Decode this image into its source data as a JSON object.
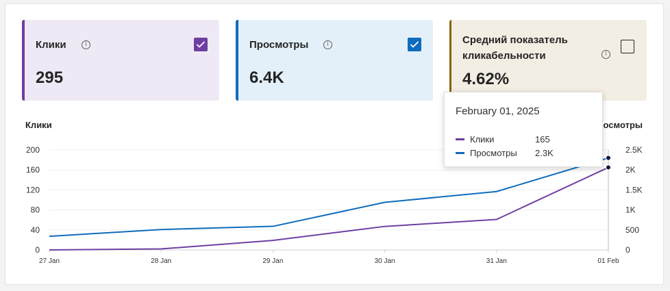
{
  "cards": [
    {
      "label": "Клики",
      "value": "295",
      "checked": true,
      "accent": "#6e3fa2"
    },
    {
      "label": "Просмотры",
      "value": "6.4K",
      "checked": true,
      "accent": "#0f6cbd"
    },
    {
      "label": "Средний показатель кликабельности",
      "value": "4.62%",
      "checked": false,
      "accent": "#8a6100"
    }
  ],
  "info_icon": "info-icon",
  "chart_data": {
    "type": "line",
    "categories": [
      "27 Jan",
      "28 Jan",
      "29 Jan",
      "30 Jan",
      "31 Jan",
      "01 Feb"
    ],
    "left_axis": {
      "label": "Клики",
      "ticks": [
        "0",
        "40",
        "80",
        "120",
        "160",
        "200"
      ],
      "ylim": [
        0,
        200
      ]
    },
    "right_axis": {
      "label": "Просмотры",
      "ticks": [
        "0",
        "500",
        "1K",
        "1.5K",
        "2K",
        "2.5K"
      ],
      "ylim": [
        0,
        2500
      ]
    },
    "series": [
      {
        "name": "Клики",
        "axis": "left",
        "color": "#6e3fa2",
        "values": [
          0,
          2,
          19,
          47,
          61,
          165
        ]
      },
      {
        "name": "Просмотры",
        "axis": "right",
        "color": "#0f6cbd",
        "values": [
          340,
          510,
          590,
          1190,
          1460,
          2300
        ]
      }
    ],
    "grid": true,
    "legend": "none"
  },
  "tooltip": {
    "date": "February 01, 2025",
    "rows": [
      {
        "name": "Клики",
        "value": "165",
        "color": "#6e3fa2"
      },
      {
        "name": "Просмотры",
        "value": "2.3K",
        "color": "#0f6cbd"
      }
    ]
  }
}
